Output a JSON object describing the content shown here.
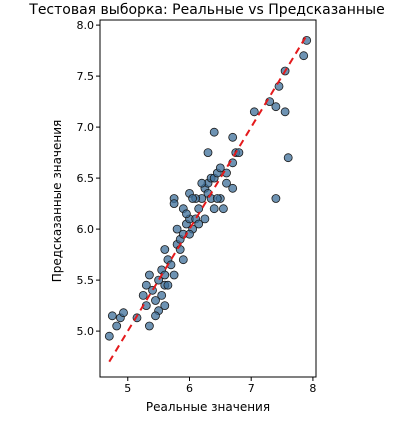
{
  "chart_data": {
    "type": "scatter",
    "title": "Тестовая выборка: Реальные vs Предсказанные",
    "xlabel": "Реальные значения",
    "ylabel": "Предсказанные значения",
    "xlim": [
      4.55,
      8.05
    ],
    "ylim": [
      4.55,
      8.05
    ],
    "xticks": [
      5,
      6,
      7,
      8
    ],
    "yticks": [
      5.0,
      5.5,
      6.0,
      6.5,
      7.0,
      7.5,
      8.0
    ],
    "ytick_labels": [
      "5.0",
      "5.5",
      "6.0",
      "6.5",
      "7.0",
      "7.5",
      "8.0"
    ],
    "xtick_labels": [
      "5",
      "6",
      "7",
      "8"
    ],
    "grid": false,
    "point_color": "#3d6f99",
    "point_edge_color": "#1a1a1a",
    "line_color": "#e41a1c",
    "reference_line": {
      "x": [
        4.7,
        7.9
      ],
      "y": [
        4.7,
        7.9
      ],
      "style": "dashed"
    },
    "points": [
      [
        4.7,
        4.95
      ],
      [
        4.75,
        5.15
      ],
      [
        4.82,
        5.05
      ],
      [
        4.88,
        5.13
      ],
      [
        4.93,
        5.18
      ],
      [
        5.15,
        5.13
      ],
      [
        5.25,
        5.35
      ],
      [
        5.3,
        5.45
      ],
      [
        5.35,
        5.55
      ],
      [
        5.4,
        5.4
      ],
      [
        5.45,
        5.3
      ],
      [
        5.5,
        5.5
      ],
      [
        5.55,
        5.6
      ],
      [
        5.6,
        5.55
      ],
      [
        5.65,
        5.7
      ],
      [
        5.5,
        5.2
      ],
      [
        5.55,
        5.35
      ],
      [
        5.6,
        5.45
      ],
      [
        5.7,
        5.65
      ],
      [
        5.75,
        5.55
      ],
      [
        5.8,
        5.85
      ],
      [
        5.85,
        5.9
      ],
      [
        5.9,
        5.95
      ],
      [
        5.95,
        6.05
      ],
      [
        6.0,
        6.1
      ],
      [
        5.6,
        5.8
      ],
      [
        5.75,
        6.3
      ],
      [
        5.75,
        6.25
      ],
      [
        5.8,
        6.0
      ],
      [
        5.85,
        5.8
      ],
      [
        5.9,
        6.2
      ],
      [
        5.95,
        6.15
      ],
      [
        6.05,
        6.0
      ],
      [
        6.1,
        6.1
      ],
      [
        6.15,
        6.2
      ],
      [
        6.2,
        6.3
      ],
      [
        6.25,
        6.4
      ],
      [
        6.3,
        6.45
      ],
      [
        6.35,
        6.5
      ],
      [
        6.4,
        6.5
      ],
      [
        6.0,
        6.35
      ],
      [
        6.1,
        6.3
      ],
      [
        6.2,
        6.45
      ],
      [
        6.3,
        6.35
      ],
      [
        6.35,
        6.3
      ],
      [
        6.45,
        6.55
      ],
      [
        6.5,
        6.6
      ],
      [
        6.6,
        6.55
      ],
      [
        6.7,
        6.65
      ],
      [
        6.75,
        6.75
      ],
      [
        6.4,
        6.2
      ],
      [
        6.5,
        6.3
      ],
      [
        6.6,
        6.45
      ],
      [
        6.7,
        6.4
      ],
      [
        6.8,
        6.75
      ],
      [
        6.3,
        6.75
      ],
      [
        6.4,
        6.95
      ],
      [
        6.7,
        6.9
      ],
      [
        7.05,
        7.15
      ],
      [
        7.3,
        7.25
      ],
      [
        7.4,
        7.2
      ],
      [
        7.45,
        7.4
      ],
      [
        7.55,
        7.55
      ],
      [
        7.55,
        7.15
      ],
      [
        7.6,
        6.7
      ],
      [
        7.4,
        6.3
      ],
      [
        7.85,
        7.7
      ],
      [
        7.9,
        7.85
      ],
      [
        5.35,
        5.05
      ],
      [
        5.6,
        5.25
      ],
      [
        6.0,
        5.95
      ],
      [
        6.05,
        6.3
      ],
      [
        6.15,
        6.05
      ],
      [
        5.9,
        5.7
      ],
      [
        5.65,
        5.45
      ],
      [
        5.45,
        5.15
      ],
      [
        5.3,
        5.25
      ],
      [
        6.25,
        6.1
      ],
      [
        6.45,
        6.3
      ],
      [
        6.55,
        6.2
      ]
    ]
  }
}
